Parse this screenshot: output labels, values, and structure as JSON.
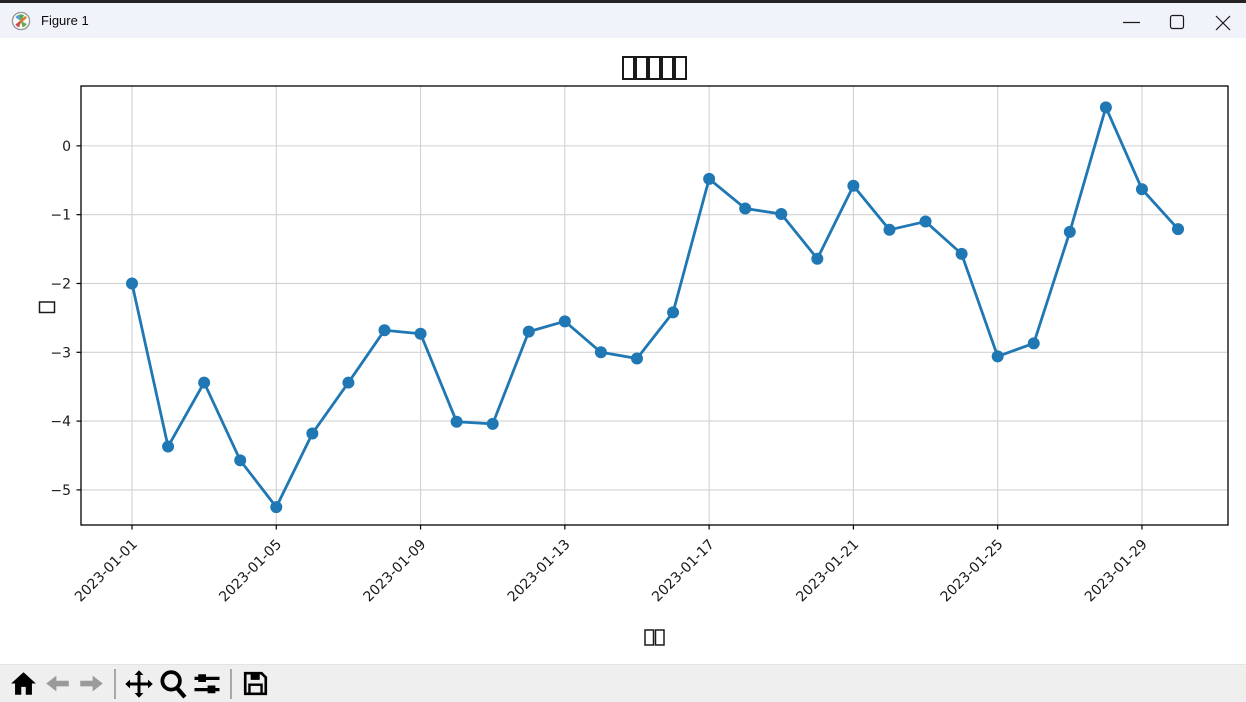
{
  "window": {
    "title": "Figure 1",
    "controls": [
      {
        "name": "minimize"
      },
      {
        "name": "maximize"
      },
      {
        "name": "close"
      }
    ]
  },
  "toolbar": {
    "buttons": [
      {
        "name": "home",
        "enabled": true
      },
      {
        "name": "back",
        "enabled": false
      },
      {
        "name": "forward",
        "enabled": false
      },
      {
        "name": "pan",
        "enabled": true
      },
      {
        "name": "zoom",
        "enabled": true
      },
      {
        "name": "configure-subplots",
        "enabled": true
      },
      {
        "name": "save",
        "enabled": true
      }
    ],
    "status_text": ""
  },
  "chart_data": {
    "type": "line",
    "title": "□□□□□",
    "xlabel": "□□",
    "ylabel": "□",
    "grid": true,
    "grid_color": "#d2d2d2",
    "line_color": "#1f77b4",
    "marker": "circle",
    "x": [
      "2023-01-01",
      "2023-01-02",
      "2023-01-03",
      "2023-01-04",
      "2023-01-05",
      "2023-01-06",
      "2023-01-07",
      "2023-01-08",
      "2023-01-09",
      "2023-01-10",
      "2023-01-11",
      "2023-01-12",
      "2023-01-13",
      "2023-01-14",
      "2023-01-15",
      "2023-01-16",
      "2023-01-17",
      "2023-01-18",
      "2023-01-19",
      "2023-01-20",
      "2023-01-21",
      "2023-01-22",
      "2023-01-23",
      "2023-01-24",
      "2023-01-25",
      "2023-01-26",
      "2023-01-27",
      "2023-01-28",
      "2023-01-29",
      "2023-01-30"
    ],
    "values": [
      -2.0,
      -4.37,
      -3.44,
      -4.57,
      -5.25,
      -4.18,
      -3.44,
      -2.68,
      -2.73,
      -4.01,
      -4.04,
      -2.7,
      -2.55,
      -3.0,
      -3.09,
      -2.42,
      -0.48,
      -0.91,
      -0.99,
      -1.64,
      -0.58,
      -1.22,
      -1.1,
      -1.57,
      -3.06,
      -2.87,
      -1.25,
      0.56,
      -0.63,
      -1.21
    ],
    "x_tick_labels": [
      "2023-01-01",
      "2023-01-05",
      "2023-01-09",
      "2023-01-13",
      "2023-01-17",
      "2023-01-21",
      "2023-01-25",
      "2023-01-29"
    ],
    "x_tick_every": 4,
    "y_ticks": [
      0,
      -1,
      -2,
      -3,
      -4,
      -5
    ],
    "y_tick_labels": [
      "0",
      "−1",
      "−2",
      "−3",
      "−4",
      "−5"
    ],
    "ylim": [
      -5.51,
      0.87
    ]
  }
}
